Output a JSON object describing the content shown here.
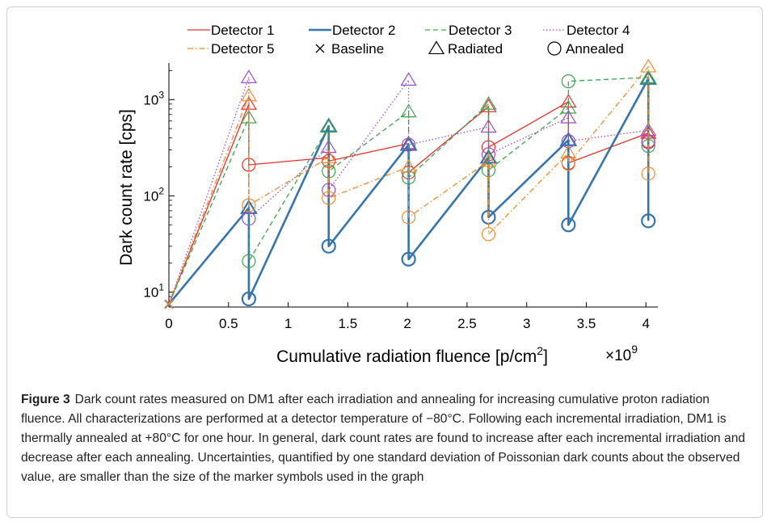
{
  "caption": {
    "label": "Figure 3",
    "text": "Dark count rates measured on DM1 after each irradiation and annealing for increasing cumulative proton radiation fluence. All characterizations are performed at a detector temperature of −80°C. Following each incremental irradiation, DM1 is thermally annealed at +80°C for one hour. In general, dark count rates are found to increase after each incremental irradiation and decrease after each annealing. Uncertainties, quantified by one standard deviation of Poissonian dark counts about the observed value, are smaller than the size of the marker symbols used in the graph"
  },
  "chart_data": {
    "type": "line",
    "title": "",
    "xlabel": "Cumulative radiation fluence [p/cm²]",
    "xlabel_main": "Cumulative radiation fluence [p/cm",
    "xlabel_sup": "2",
    "xlabel_end": "]",
    "x_multiplier": "×10",
    "x_multiplier_exp": "9",
    "ylabel": "Dark count rate [cps]",
    "yscale": "log",
    "xlim": [
      0,
      4.1
    ],
    "ylim": [
      7,
      2400
    ],
    "x_ticks": [
      0,
      0.5,
      1,
      1.5,
      2,
      2.5,
      3,
      3.5,
      4
    ],
    "x_tick_labels": [
      "0",
      "0.5",
      "1",
      "1.5",
      "2",
      "2.5",
      "3",
      "3.5",
      "4"
    ],
    "y_ticks": [
      {
        "value": 10,
        "base": "10",
        "exp": "1"
      },
      {
        "value": 100,
        "base": "10",
        "exp": "2"
      },
      {
        "value": 1000,
        "base": "10",
        "exp": "3"
      }
    ],
    "grid": false,
    "legend_position": "top",
    "x": [
      0,
      0.67,
      1.34,
      2.01,
      2.68,
      3.35,
      4.02
    ],
    "marker_legend": [
      {
        "name": "Baseline",
        "marker": "x"
      },
      {
        "name": "Radiated",
        "marker": "triangle"
      },
      {
        "name": "Annealed",
        "marker": "circle"
      }
    ],
    "series": [
      {
        "name": "Detector 1",
        "color": "#e8302a",
        "dash": "solid",
        "width": 1.3,
        "baseline": 7.5,
        "radiated": [
          900,
          250,
          350,
          850,
          950,
          450
        ],
        "annealed": [
          210,
          230,
          175,
          320,
          220,
          370
        ]
      },
      {
        "name": "Detector 2",
        "color": "#3474b0",
        "dash": "solid",
        "width": 2.6,
        "baseline": 7.5,
        "radiated": [
          75,
          530,
          340,
          250,
          380,
          1650
        ],
        "annealed": [
          8.5,
          30,
          22,
          60,
          50,
          55
        ]
      },
      {
        "name": "Detector 3",
        "color": "#3aa648",
        "dash": "dashed",
        "width": 1.3,
        "baseline": 7.5,
        "radiated": [
          650,
          520,
          750,
          900,
          820,
          1700
        ],
        "annealed": [
          21,
          180,
          155,
          185,
          1550,
          330
        ]
      },
      {
        "name": "Detector 4",
        "color": "#9b4dca",
        "dash": "dotted",
        "width": 1.3,
        "baseline": 7.5,
        "radiated": [
          1700,
          320,
          1600,
          520,
          650,
          480
        ],
        "annealed": [
          58,
          115,
          340,
          270,
          370,
          360
        ]
      },
      {
        "name": "Detector 5",
        "color": "#f28b2a",
        "dash": "dashdot",
        "width": 1.3,
        "baseline": 7.5,
        "radiated": [
          1100,
          250,
          200,
          230,
          280,
          2200
        ],
        "annealed": [
          80,
          95,
          60,
          40,
          215,
          170
        ]
      }
    ]
  }
}
